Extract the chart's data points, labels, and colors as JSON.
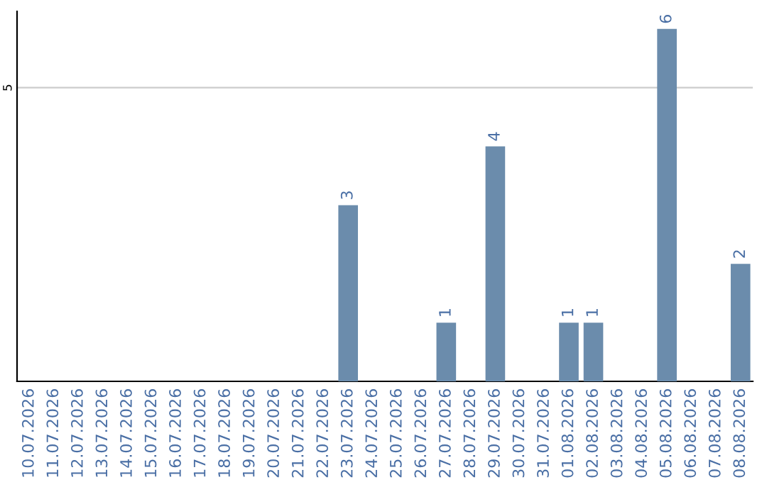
{
  "chart_data": {
    "type": "bar",
    "categories": [
      "10.07.2026",
      "11.07.2026",
      "12.07.2026",
      "13.07.2026",
      "14.07.2026",
      "15.07.2026",
      "16.07.2026",
      "17.07.2026",
      "18.07.2026",
      "19.07.2026",
      "20.07.2026",
      "21.07.2026",
      "22.07.2026",
      "23.07.2026",
      "24.07.2026",
      "25.07.2026",
      "26.07.2026",
      "27.07.2026",
      "28.07.2026",
      "29.07.2026",
      "30.07.2026",
      "31.07.2026",
      "01.08.2026",
      "02.08.2026",
      "03.08.2026",
      "04.08.2026",
      "05.08.2026",
      "06.08.2026",
      "07.08.2026",
      "08.08.2026"
    ],
    "values": [
      null,
      null,
      null,
      null,
      null,
      null,
      null,
      null,
      null,
      null,
      null,
      null,
      null,
      3,
      null,
      null,
      null,
      1,
      null,
      4,
      null,
      null,
      1,
      1,
      null,
      null,
      6,
      null,
      null,
      2
    ],
    "data_labels": true,
    "color": "#6b8cac",
    "ylim": [
      0,
      6.3
    ],
    "ref_lines": [
      {
        "axis": "y",
        "value": 5,
        "label": "5",
        "color": "#cccccc"
      }
    ]
  }
}
